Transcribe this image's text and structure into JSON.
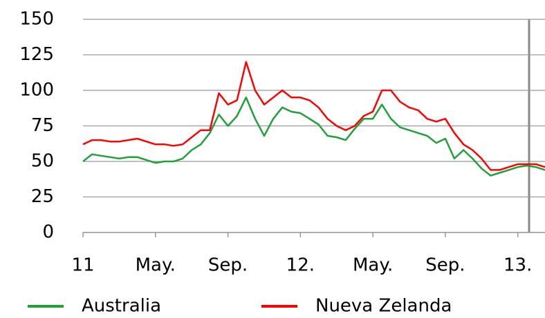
{
  "chart_data": {
    "type": "line",
    "categories": [
      "11",
      null,
      null,
      null,
      null,
      null,
      null,
      null,
      "May.",
      null,
      null,
      null,
      null,
      null,
      null,
      null,
      "Sep.",
      null,
      null,
      null,
      null,
      null,
      null,
      null,
      "12.",
      null,
      null,
      null,
      null,
      null,
      null,
      null,
      "May.",
      null,
      null,
      null,
      null,
      null,
      null,
      null,
      "Sep.",
      null,
      null,
      null,
      null,
      null,
      null,
      null,
      "13.",
      null,
      null,
      null
    ],
    "series": [
      {
        "name": "Australia",
        "color": "#1fa038",
        "values": [
          50,
          55,
          54,
          53,
          52,
          53,
          53,
          51,
          49,
          50,
          50,
          52,
          58,
          62,
          70,
          83,
          75,
          82,
          95,
          80,
          68,
          80,
          88,
          85,
          84,
          80,
          76,
          68,
          67,
          65,
          73,
          80,
          80,
          90,
          80,
          74,
          72,
          70,
          68,
          63,
          66,
          52,
          58,
          52,
          45,
          40,
          42,
          44,
          46,
          47,
          46,
          44
        ]
      },
      {
        "name": "Nueva Zelanda",
        "color": "#ff0000",
        "values": [
          62,
          65,
          65,
          64,
          64,
          65,
          66,
          64,
          62,
          62,
          61,
          62,
          67,
          72,
          72,
          98,
          90,
          93,
          120,
          100,
          90,
          95,
          100,
          95,
          95,
          93,
          88,
          80,
          75,
          72,
          75,
          82,
          85,
          100,
          100,
          92,
          88,
          86,
          80,
          78,
          80,
          70,
          62,
          58,
          52,
          44,
          44,
          46,
          48,
          48,
          48,
          46
        ]
      }
    ],
    "ylim": [
      0,
      150
    ],
    "yticks": [
      0,
      25,
      50,
      75,
      100,
      125,
      150
    ],
    "grid": true
  }
}
